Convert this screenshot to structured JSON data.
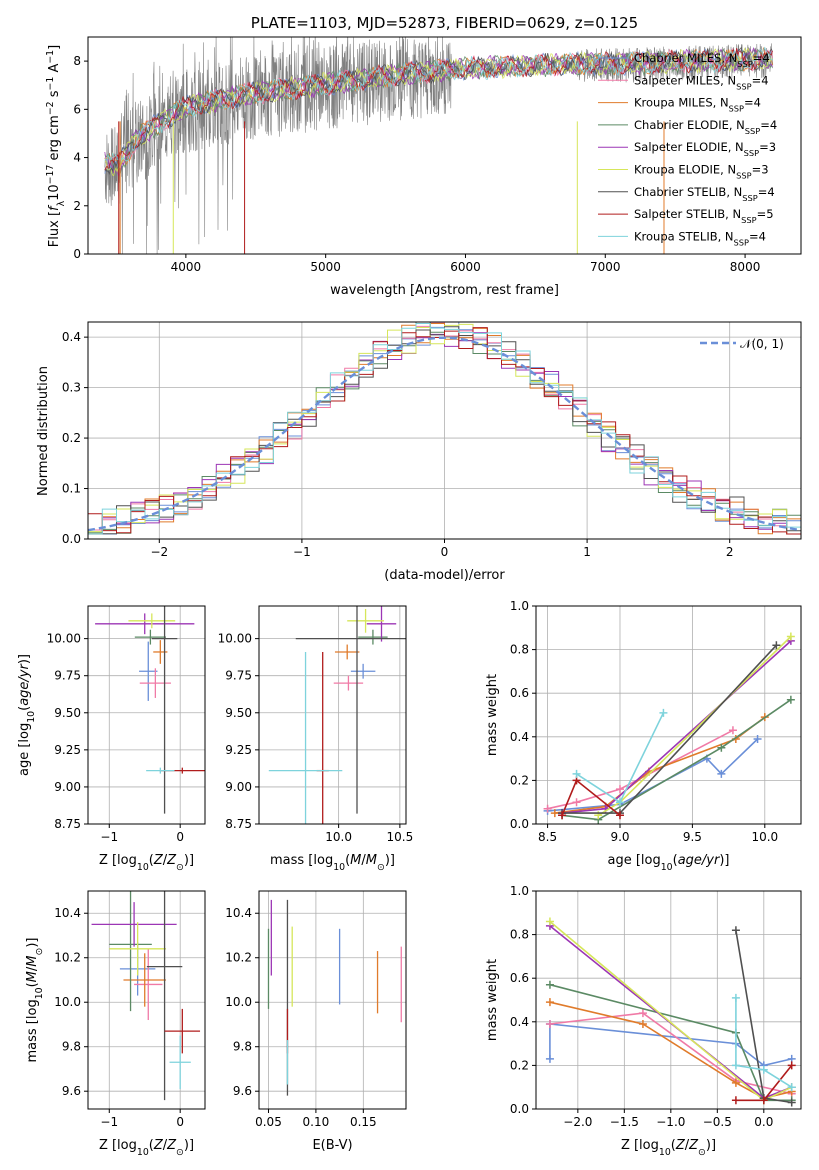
{
  "colors": {
    "Chabrier MILES": "#6a8fd8",
    "Salpeter MILES": "#f07aa6",
    "Kroupa MILES": "#e07b2b",
    "Chabrier ELODIE": "#5b8a64",
    "Salpeter ELODIE": "#9c36b5",
    "Kroupa ELODIE": "#d6e65a",
    "Chabrier STELIB": "#505050",
    "Salpeter STELIB": "#b01c1c",
    "Kroupa STELIB": "#7ed3dc",
    "data": "#808080",
    "normal_curve": "#6a8fd8",
    "grid": "#b0b0b0"
  },
  "chart_data": [
    {
      "id": "spectrum",
      "type": "line",
      "title": "PLATE=1103, MJD=52873, FIBERID=0629, z=0.125",
      "xlabel": "wavelength [Angstrom, rest frame]",
      "ylabel": "Flux [f_λ10^-17 erg cm^-2 s^-1 A^-1]",
      "xlim": [
        3300,
        8400
      ],
      "ylim": [
        0,
        9
      ],
      "xticks": [
        4000,
        5000,
        6000,
        7000,
        8000
      ],
      "yticks": [
        0,
        2,
        4,
        6,
        8
      ],
      "grid": false,
      "legend_position": "upper right",
      "continuum": [
        [
          3420,
          3.8
        ],
        [
          3520,
          3.7
        ],
        [
          3650,
          4.8
        ],
        [
          3850,
          5.6
        ],
        [
          4000,
          6.1
        ],
        [
          4400,
          6.6
        ],
        [
          4800,
          6.9
        ],
        [
          5200,
          7.2
        ],
        [
          5600,
          7.5
        ],
        [
          6000,
          7.7
        ],
        [
          6400,
          7.8
        ],
        [
          6800,
          7.9
        ],
        [
          7200,
          7.9
        ],
        [
          7600,
          8.0
        ],
        [
          8200,
          8.1
        ]
      ],
      "legend": [
        {
          "label": "Chabrier MILES, N_SSP=4",
          "main": "Chabrier MILES, N",
          "sub": "SSP",
          "tail": "=4"
        },
        {
          "label": "Salpeter MILES, N_SSP=4",
          "main": "Salpeter MILES, N",
          "sub": "SSP",
          "tail": "=4"
        },
        {
          "label": "Kroupa MILES, N_SSP=4",
          "main": "Kroupa MILES, N",
          "sub": "SSP",
          "tail": "=4"
        },
        {
          "label": "Chabrier ELODIE, N_SSP=4",
          "main": "Chabrier ELODIE, N",
          "sub": "SSP",
          "tail": "=4"
        },
        {
          "label": "Salpeter ELODIE, N_SSP=3",
          "main": "Salpeter ELODIE, N",
          "sub": "SSP",
          "tail": "=3"
        },
        {
          "label": "Kroupa ELODIE, N_SSP=3",
          "main": "Kroupa ELODIE, N",
          "sub": "SSP",
          "tail": "=3"
        },
        {
          "label": "Chabrier STELIB, N_SSP=4",
          "main": "Chabrier STELIB, N",
          "sub": "SSP",
          "tail": "=4"
        },
        {
          "label": "Salpeter STELIB, N_SSP=5",
          "main": "Salpeter STELIB, N",
          "sub": "SSP",
          "tail": "=5"
        },
        {
          "label": "Kroupa STELIB, N_SSP=4",
          "main": "Kroupa STELIB, N",
          "sub": "SSP",
          "tail": "=4"
        }
      ]
    },
    {
      "id": "residuals",
      "type": "histogram",
      "xlabel": "(data-model)/error",
      "ylabel": "Normed distribution",
      "xlim": [
        -2.5,
        2.5
      ],
      "ylim": [
        0,
        0.43
      ],
      "xticks": [
        -2,
        -1,
        0,
        1,
        2
      ],
      "yticks": [
        0.0,
        0.1,
        0.2,
        0.3,
        0.4
      ],
      "bin_width": 0.1,
      "grid": true,
      "legend": [
        {
          "label": "N(0,1)",
          "style": "dashed"
        }
      ],
      "legend_position": "upper right"
    },
    {
      "id": "age_vs_Z",
      "type": "errorbar",
      "xlabel": "Z [log10(Z/Z_sun)]",
      "ylabel": "age [log10(age/yr)]",
      "xlim": [
        -1.3,
        0.35
      ],
      "ylim": [
        8.75,
        10.22
      ],
      "xticks": [
        -1,
        0
      ],
      "yticks": [
        8.75,
        9.0,
        9.25,
        9.5,
        9.75,
        10.0
      ],
      "grid": true,
      "points": [
        {
          "model": "Chabrier MILES",
          "x": -0.45,
          "xerr": 0.13,
          "y": 9.78,
          "yerr": 0.2
        },
        {
          "model": "Salpeter MILES",
          "x": -0.35,
          "xerr": 0.22,
          "y": 9.7,
          "yerr": 0.1
        },
        {
          "model": "Kroupa MILES",
          "x": -0.28,
          "xerr": 0.1,
          "y": 9.91,
          "yerr": 0.08
        },
        {
          "model": "Chabrier ELODIE",
          "x": -0.42,
          "xerr": 0.22,
          "y": 10.01,
          "yerr": 0.05
        },
        {
          "model": "Salpeter ELODIE",
          "x": -0.5,
          "xerr": 0.7,
          "y": 10.1,
          "yerr": 0.07
        },
        {
          "model": "Kroupa ELODIE",
          "x": -0.4,
          "xerr": 0.33,
          "y": 10.12,
          "yerr": 0.05
        },
        {
          "model": "Chabrier STELIB",
          "x": -0.22,
          "xerr": 0.18,
          "y": 10.0,
          "yerr": 1.18
        },
        {
          "model": "Salpeter STELIB",
          "x": 0.03,
          "xerr": 0.32,
          "y": 9.11,
          "yerr": 0.02
        },
        {
          "model": "Kroupa STELIB",
          "x": -0.28,
          "xerr": 0.2,
          "y": 9.11,
          "yerr": 0.02
        }
      ]
    },
    {
      "id": "age_vs_mass",
      "type": "errorbar",
      "xlabel": "mass [log10(M/M_sun)]",
      "ylabel": "",
      "xlim": [
        9.35,
        10.55
      ],
      "ylim": [
        8.75,
        10.22
      ],
      "xticks": [
        10.0,
        10.5
      ],
      "yticks": [
        8.75,
        9.0,
        9.25,
        9.5,
        9.75,
        10.0
      ],
      "grid": true,
      "points": [
        {
          "model": "Chabrier MILES",
          "x": 10.2,
          "xerr": 0.1,
          "y": 9.78,
          "yerr": 0.05
        },
        {
          "model": "Salpeter MILES",
          "x": 10.08,
          "xerr": 0.12,
          "y": 9.7,
          "yerr": 0.05
        },
        {
          "model": "Kroupa MILES",
          "x": 10.07,
          "xerr": 0.1,
          "y": 9.91,
          "yerr": 0.05
        },
        {
          "model": "Chabrier ELODIE",
          "x": 10.28,
          "xerr": 0.12,
          "y": 10.01,
          "yerr": 0.05
        },
        {
          "model": "Salpeter ELODIE",
          "x": 10.35,
          "xerr": 0.12,
          "y": 10.1,
          "yerr": 0.12
        },
        {
          "model": "Kroupa ELODIE",
          "x": 10.22,
          "xerr": 0.15,
          "y": 10.12,
          "yerr": 0.08
        },
        {
          "model": "Chabrier STELIB",
          "x": 10.15,
          "xerr": 0.5,
          "y": 10.0,
          "yerr": 1.18
        },
        {
          "model": "Salpeter STELIB",
          "x": 9.87,
          "xerr": 0.05,
          "y": 9.11,
          "yerr": 0.8
        },
        {
          "model": "Kroupa STELIB",
          "x": 9.73,
          "xerr": 0.3,
          "y": 9.11,
          "yerr": 0.8
        }
      ]
    },
    {
      "id": "massweight_vs_age",
      "type": "line",
      "xlabel": "age [log10(age/yr)]",
      "ylabel": "mass weight",
      "xlim": [
        8.42,
        10.25
      ],
      "ylim": [
        0,
        1.0
      ],
      "xticks": [
        8.5,
        9.0,
        9.5,
        10.0
      ],
      "yticks": [
        0.0,
        0.2,
        0.4,
        0.6,
        0.8,
        1.0
      ],
      "grid": true,
      "series": [
        {
          "model": "Chabrier MILES",
          "points": [
            [
              8.5,
              0.06
            ],
            [
              9.0,
              0.09
            ],
            [
              9.6,
              0.3
            ],
            [
              9.7,
              0.23
            ],
            [
              9.95,
              0.39
            ]
          ]
        },
        {
          "model": "Salpeter MILES",
          "points": [
            [
              8.5,
              0.07
            ],
            [
              8.7,
              0.1
            ],
            [
              9.0,
              0.16
            ],
            [
              9.78,
              0.43
            ]
          ]
        },
        {
          "model": "Kroupa MILES",
          "points": [
            [
              8.55,
              0.05
            ],
            [
              8.9,
              0.08
            ],
            [
              9.2,
              0.24
            ],
            [
              9.8,
              0.39
            ],
            [
              10.0,
              0.49
            ]
          ]
        },
        {
          "model": "Chabrier ELODIE",
          "points": [
            [
              8.6,
              0.04
            ],
            [
              8.85,
              0.02
            ],
            [
              9.7,
              0.35
            ],
            [
              10.18,
              0.57
            ]
          ]
        },
        {
          "model": "Salpeter ELODIE",
          "points": [
            [
              8.6,
              0.05
            ],
            [
              8.9,
              0.07
            ],
            [
              10.18,
              0.84
            ]
          ]
        },
        {
          "model": "Kroupa ELODIE",
          "points": [
            [
              8.85,
              0.04
            ],
            [
              9.0,
              0.1
            ],
            [
              10.18,
              0.86
            ]
          ]
        },
        {
          "model": "Chabrier STELIB",
          "points": [
            [
              8.6,
              0.05
            ],
            [
              9.0,
              0.05
            ],
            [
              10.08,
              0.82
            ]
          ]
        },
        {
          "model": "Salpeter STELIB",
          "points": [
            [
              8.6,
              0.04
            ],
            [
              8.7,
              0.2
            ],
            [
              9.0,
              0.04
            ]
          ]
        },
        {
          "model": "Kroupa STELIB",
          "points": [
            [
              8.7,
              0.23
            ],
            [
              9.0,
              0.1
            ],
            [
              9.3,
              0.51
            ]
          ]
        }
      ]
    },
    {
      "id": "mass_vs_Z",
      "type": "errorbar",
      "xlabel": "Z [log10(Z/Z_sun)]",
      "ylabel": "mass [log10(M/M_sun)]",
      "xlim": [
        -1.3,
        0.35
      ],
      "ylim": [
        9.52,
        10.5
      ],
      "xticks": [
        -1,
        0
      ],
      "yticks": [
        9.6,
        9.8,
        10.0,
        10.2,
        10.4
      ],
      "grid": true,
      "points": [
        {
          "model": "Chabrier MILES",
          "x": -0.6,
          "xerr": 0.25,
          "y": 10.15,
          "yerr": 0.12
        },
        {
          "model": "Salpeter MILES",
          "x": -0.45,
          "xerr": 0.2,
          "y": 10.08,
          "yerr": 0.16
        },
        {
          "model": "Kroupa MILES",
          "x": -0.5,
          "xerr": 0.3,
          "y": 10.1,
          "yerr": 0.12
        },
        {
          "model": "Chabrier ELODIE",
          "x": -0.7,
          "xerr": 0.3,
          "y": 10.26,
          "yerr": 0.3
        },
        {
          "model": "Salpeter ELODIE",
          "x": -0.65,
          "xerr": 0.6,
          "y": 10.35,
          "yerr": 0.1
        },
        {
          "model": "Kroupa ELODIE",
          "x": -0.6,
          "xerr": 0.4,
          "y": 10.24,
          "yerr": 0.12
        },
        {
          "model": "Chabrier STELIB",
          "x": -0.22,
          "xerr": 0.25,
          "y": 10.16,
          "yerr": 0.6
        },
        {
          "model": "Salpeter STELIB",
          "x": 0.03,
          "xerr": 0.25,
          "y": 9.87,
          "yerr": 0.1
        },
        {
          "model": "Kroupa STELIB",
          "x": 0.0,
          "xerr": 0.15,
          "y": 9.73,
          "yerr": 0.12
        }
      ]
    },
    {
      "id": "mass_vs_ebv",
      "type": "errorbar",
      "xlabel": "E(B-V)",
      "ylabel": "",
      "xlim": [
        0.04,
        0.195
      ],
      "ylim": [
        9.52,
        10.5
      ],
      "xticks": [
        0.05,
        0.1,
        0.15
      ],
      "yticks": [
        9.6,
        9.8,
        10.0,
        10.2,
        10.4
      ],
      "grid": true,
      "points": [
        {
          "model": "Chabrier MILES",
          "x": 0.125,
          "y": 10.16,
          "yerr": 0.17
        },
        {
          "model": "Salpeter MILES",
          "x": 0.19,
          "y": 10.08,
          "yerr": 0.17
        },
        {
          "model": "Kroupa MILES",
          "x": 0.165,
          "y": 10.09,
          "yerr": 0.14
        },
        {
          "model": "Chabrier ELODIE",
          "x": 0.05,
          "y": 10.15,
          "yerr": 0.18
        },
        {
          "model": "Salpeter ELODIE",
          "x": 0.053,
          "y": 10.29,
          "yerr": 0.17
        },
        {
          "model": "Kroupa ELODIE",
          "x": 0.075,
          "y": 10.16,
          "yerr": 0.18
        },
        {
          "model": "Chabrier STELIB",
          "x": 0.07,
          "y": 10.02,
          "yerr": 0.44
        },
        {
          "model": "Salpeter STELIB",
          "x": 0.07,
          "y": 9.87,
          "yerr": 0.1
        },
        {
          "model": "Kroupa STELIB",
          "x": 0.07,
          "y": 9.73,
          "yerr": 0.1
        }
      ]
    },
    {
      "id": "massweight_vs_Z",
      "type": "line",
      "xlabel": "Z [log10(Z/Z_sun)]",
      "ylabel": "mass weight",
      "xlim": [
        -2.45,
        0.4
      ],
      "ylim": [
        0,
        1.0
      ],
      "xticks": [
        -2.0,
        -1.5,
        -1.0,
        -0.5,
        0.0
      ],
      "yticks": [
        0.0,
        0.2,
        0.4,
        0.6,
        0.8,
        1.0
      ],
      "grid": true,
      "series": [
        {
          "model": "Chabrier MILES",
          "points": [
            [
              -2.3,
              0.23
            ],
            [
              -2.3,
              0.39
            ],
            [
              -0.3,
              0.3
            ],
            [
              0.0,
              0.2
            ],
            [
              0.3,
              0.23
            ]
          ]
        },
        {
          "model": "Salpeter MILES",
          "points": [
            [
              -2.3,
              0.39
            ],
            [
              -1.3,
              0.44
            ],
            [
              -0.3,
              0.13
            ],
            [
              0.3,
              0.07
            ]
          ]
        },
        {
          "model": "Kroupa MILES",
          "points": [
            [
              -2.3,
              0.49
            ],
            [
              -1.3,
              0.39
            ],
            [
              -0.3,
              0.12
            ],
            [
              0.0,
              0.05
            ],
            [
              0.3,
              0.08
            ]
          ]
        },
        {
          "model": "Chabrier ELODIE",
          "points": [
            [
              -2.3,
              0.57
            ],
            [
              -0.3,
              0.35
            ],
            [
              0.0,
              0.04
            ],
            [
              0.3,
              0.04
            ]
          ]
        },
        {
          "model": "Salpeter ELODIE",
          "points": [
            [
              -2.3,
              0.84
            ],
            [
              0.0,
              0.05
            ],
            [
              0.3,
              0.1
            ]
          ]
        },
        {
          "model": "Kroupa ELODIE",
          "points": [
            [
              -2.3,
              0.86
            ],
            [
              0.0,
              0.04
            ],
            [
              0.3,
              0.1
            ]
          ]
        },
        {
          "model": "Chabrier STELIB",
          "points": [
            [
              -0.3,
              0.82
            ],
            [
              0.0,
              0.05
            ],
            [
              0.3,
              0.03
            ]
          ]
        },
        {
          "model": "Salpeter STELIB",
          "points": [
            [
              -0.3,
              0.04
            ],
            [
              0.0,
              0.04
            ],
            [
              0.3,
              0.2
            ]
          ]
        },
        {
          "model": "Kroupa STELIB",
          "points": [
            [
              -0.3,
              0.51
            ],
            [
              -0.3,
              0.2
            ],
            [
              0.0,
              0.18
            ],
            [
              0.3,
              0.1
            ]
          ]
        }
      ]
    }
  ]
}
